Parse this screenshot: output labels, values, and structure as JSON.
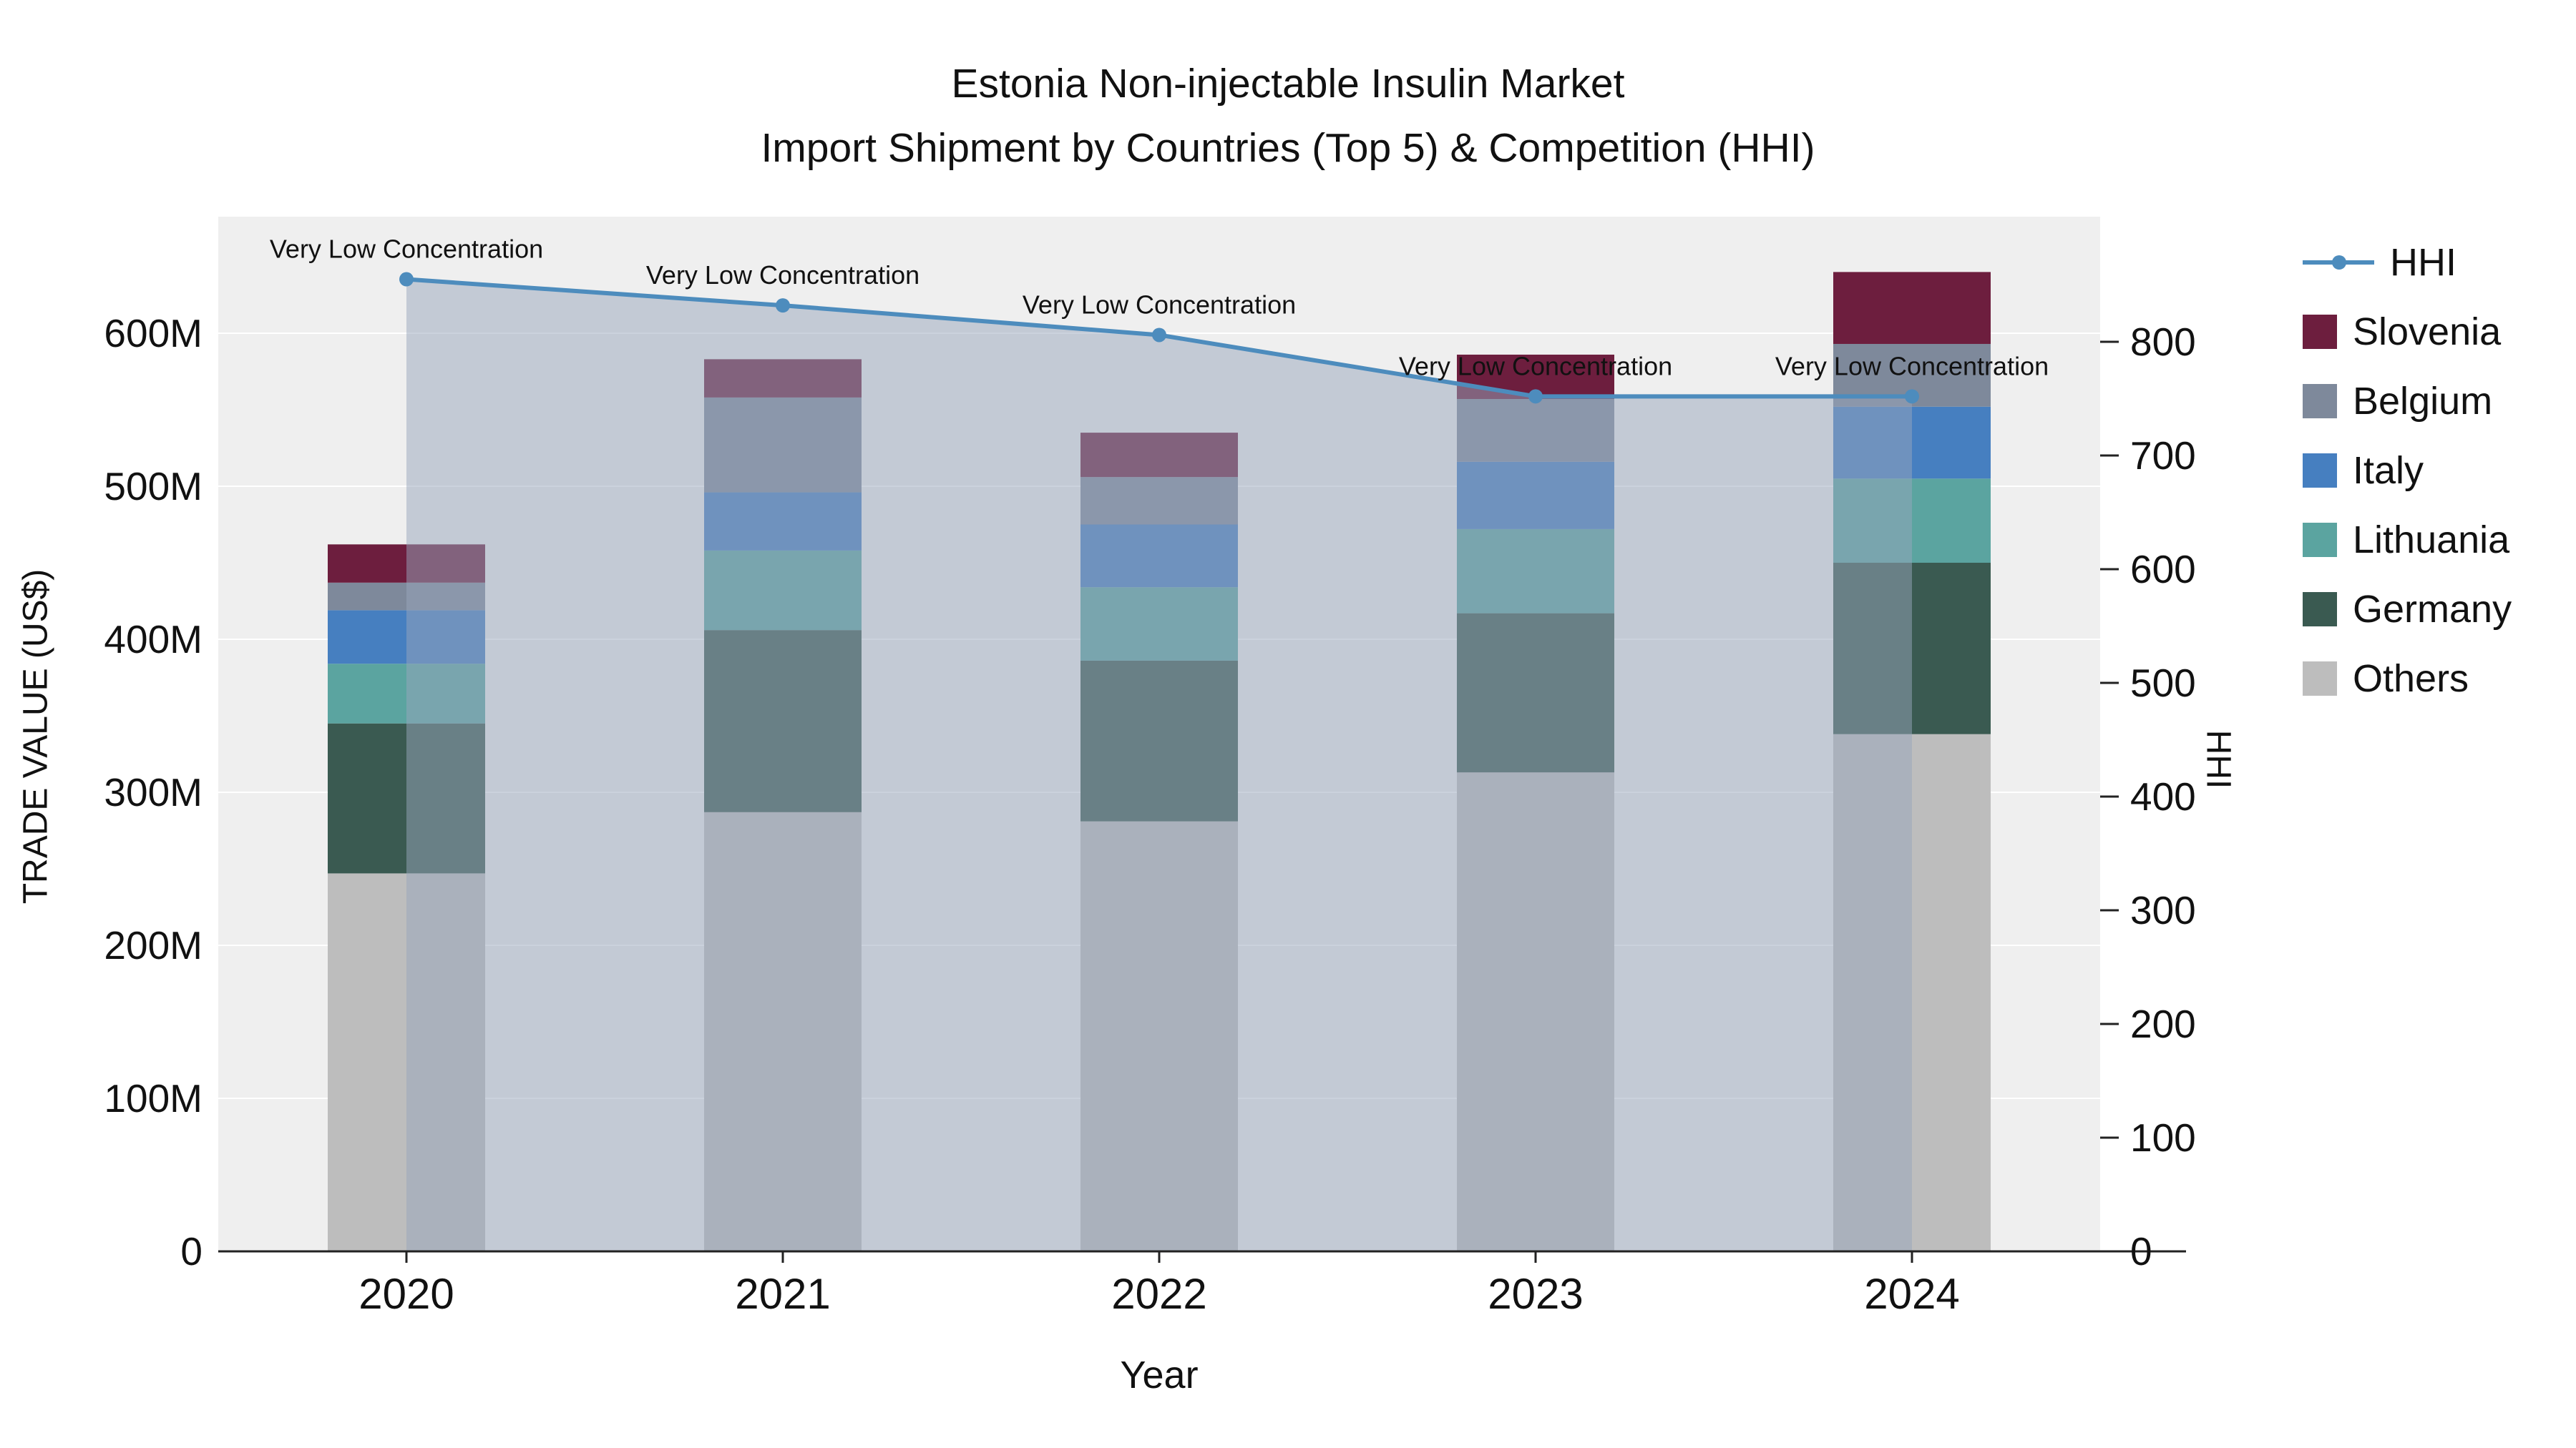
{
  "chart_data": {
    "type": "bar",
    "stacked": true,
    "title_line1": "Estonia Non-injectable Insulin Market",
    "title_line2": "Import Shipment by Countries (Top 5) & Competition (HHI)",
    "xlabel": "Year",
    "ylabel_left": "TRADE VALUE (US$)",
    "ylabel_right": "HHI",
    "value_unit": "US$ millions",
    "categories": [
      "2020",
      "2021",
      "2022",
      "2023",
      "2024"
    ],
    "series": [
      {
        "name": "Others",
        "color": "#bdbdbd",
        "values": [
          247,
          287,
          281,
          313,
          338
        ]
      },
      {
        "name": "Germany",
        "color": "#3a5a51",
        "values": [
          98,
          119,
          105,
          104,
          112
        ]
      },
      {
        "name": "Lithuania",
        "color": "#5ba4a0",
        "values": [
          39,
          52,
          48,
          55,
          55
        ]
      },
      {
        "name": "Italy",
        "color": "#467fc0",
        "values": [
          35,
          38,
          41,
          44,
          47
        ]
      },
      {
        "name": "Belgium",
        "color": "#7e899b",
        "values": [
          18,
          62,
          31,
          41,
          41
        ]
      },
      {
        "name": "Slovenia",
        "color": "#6d1e3e",
        "values": [
          25,
          25,
          29,
          29,
          47
        ]
      }
    ],
    "line_series": {
      "name": "HHI",
      "axis": "right",
      "color": "#4d8cbd",
      "area_fill": "rgba(151,166,187,0.5)",
      "values": [
        855,
        832,
        806,
        752,
        752
      ]
    },
    "annotations": [
      "Very Low Concentration",
      "Very Low Concentration",
      "Very Low Concentration",
      "Very Low Concentration",
      "Very Low Concentration"
    ],
    "y_left_ticks": {
      "labels": [
        "0",
        "100M",
        "200M",
        "300M",
        "400M",
        "500M",
        "600M"
      ],
      "values": [
        0,
        100,
        200,
        300,
        400,
        500,
        600
      ]
    },
    "y_right_ticks": {
      "labels": [
        "0",
        "100",
        "200",
        "300",
        "400",
        "500",
        "600",
        "700",
        "800"
      ],
      "values": [
        0,
        100,
        200,
        300,
        400,
        500,
        600,
        700,
        800
      ]
    },
    "y_left_range": [
      0,
      676
    ],
    "y_right_range": [
      0,
      910
    ],
    "grid": "horizontal-white",
    "legend_position": "right",
    "plot_bg_color": "#efefef"
  },
  "legend": {
    "items": [
      {
        "label": "HHI",
        "type": "line",
        "color": "#4d8cbd"
      },
      {
        "label": "Slovenia",
        "type": "swatch",
        "color": "#6d1e3e"
      },
      {
        "label": "Belgium",
        "type": "swatch",
        "color": "#7e899b"
      },
      {
        "label": "Italy",
        "type": "swatch",
        "color": "#467fc0"
      },
      {
        "label": "Lithuania",
        "type": "swatch",
        "color": "#5ba4a0"
      },
      {
        "label": "Germany",
        "type": "swatch",
        "color": "#3a5a51"
      },
      {
        "label": "Others",
        "type": "swatch",
        "color": "#bdbdbd"
      }
    ]
  }
}
